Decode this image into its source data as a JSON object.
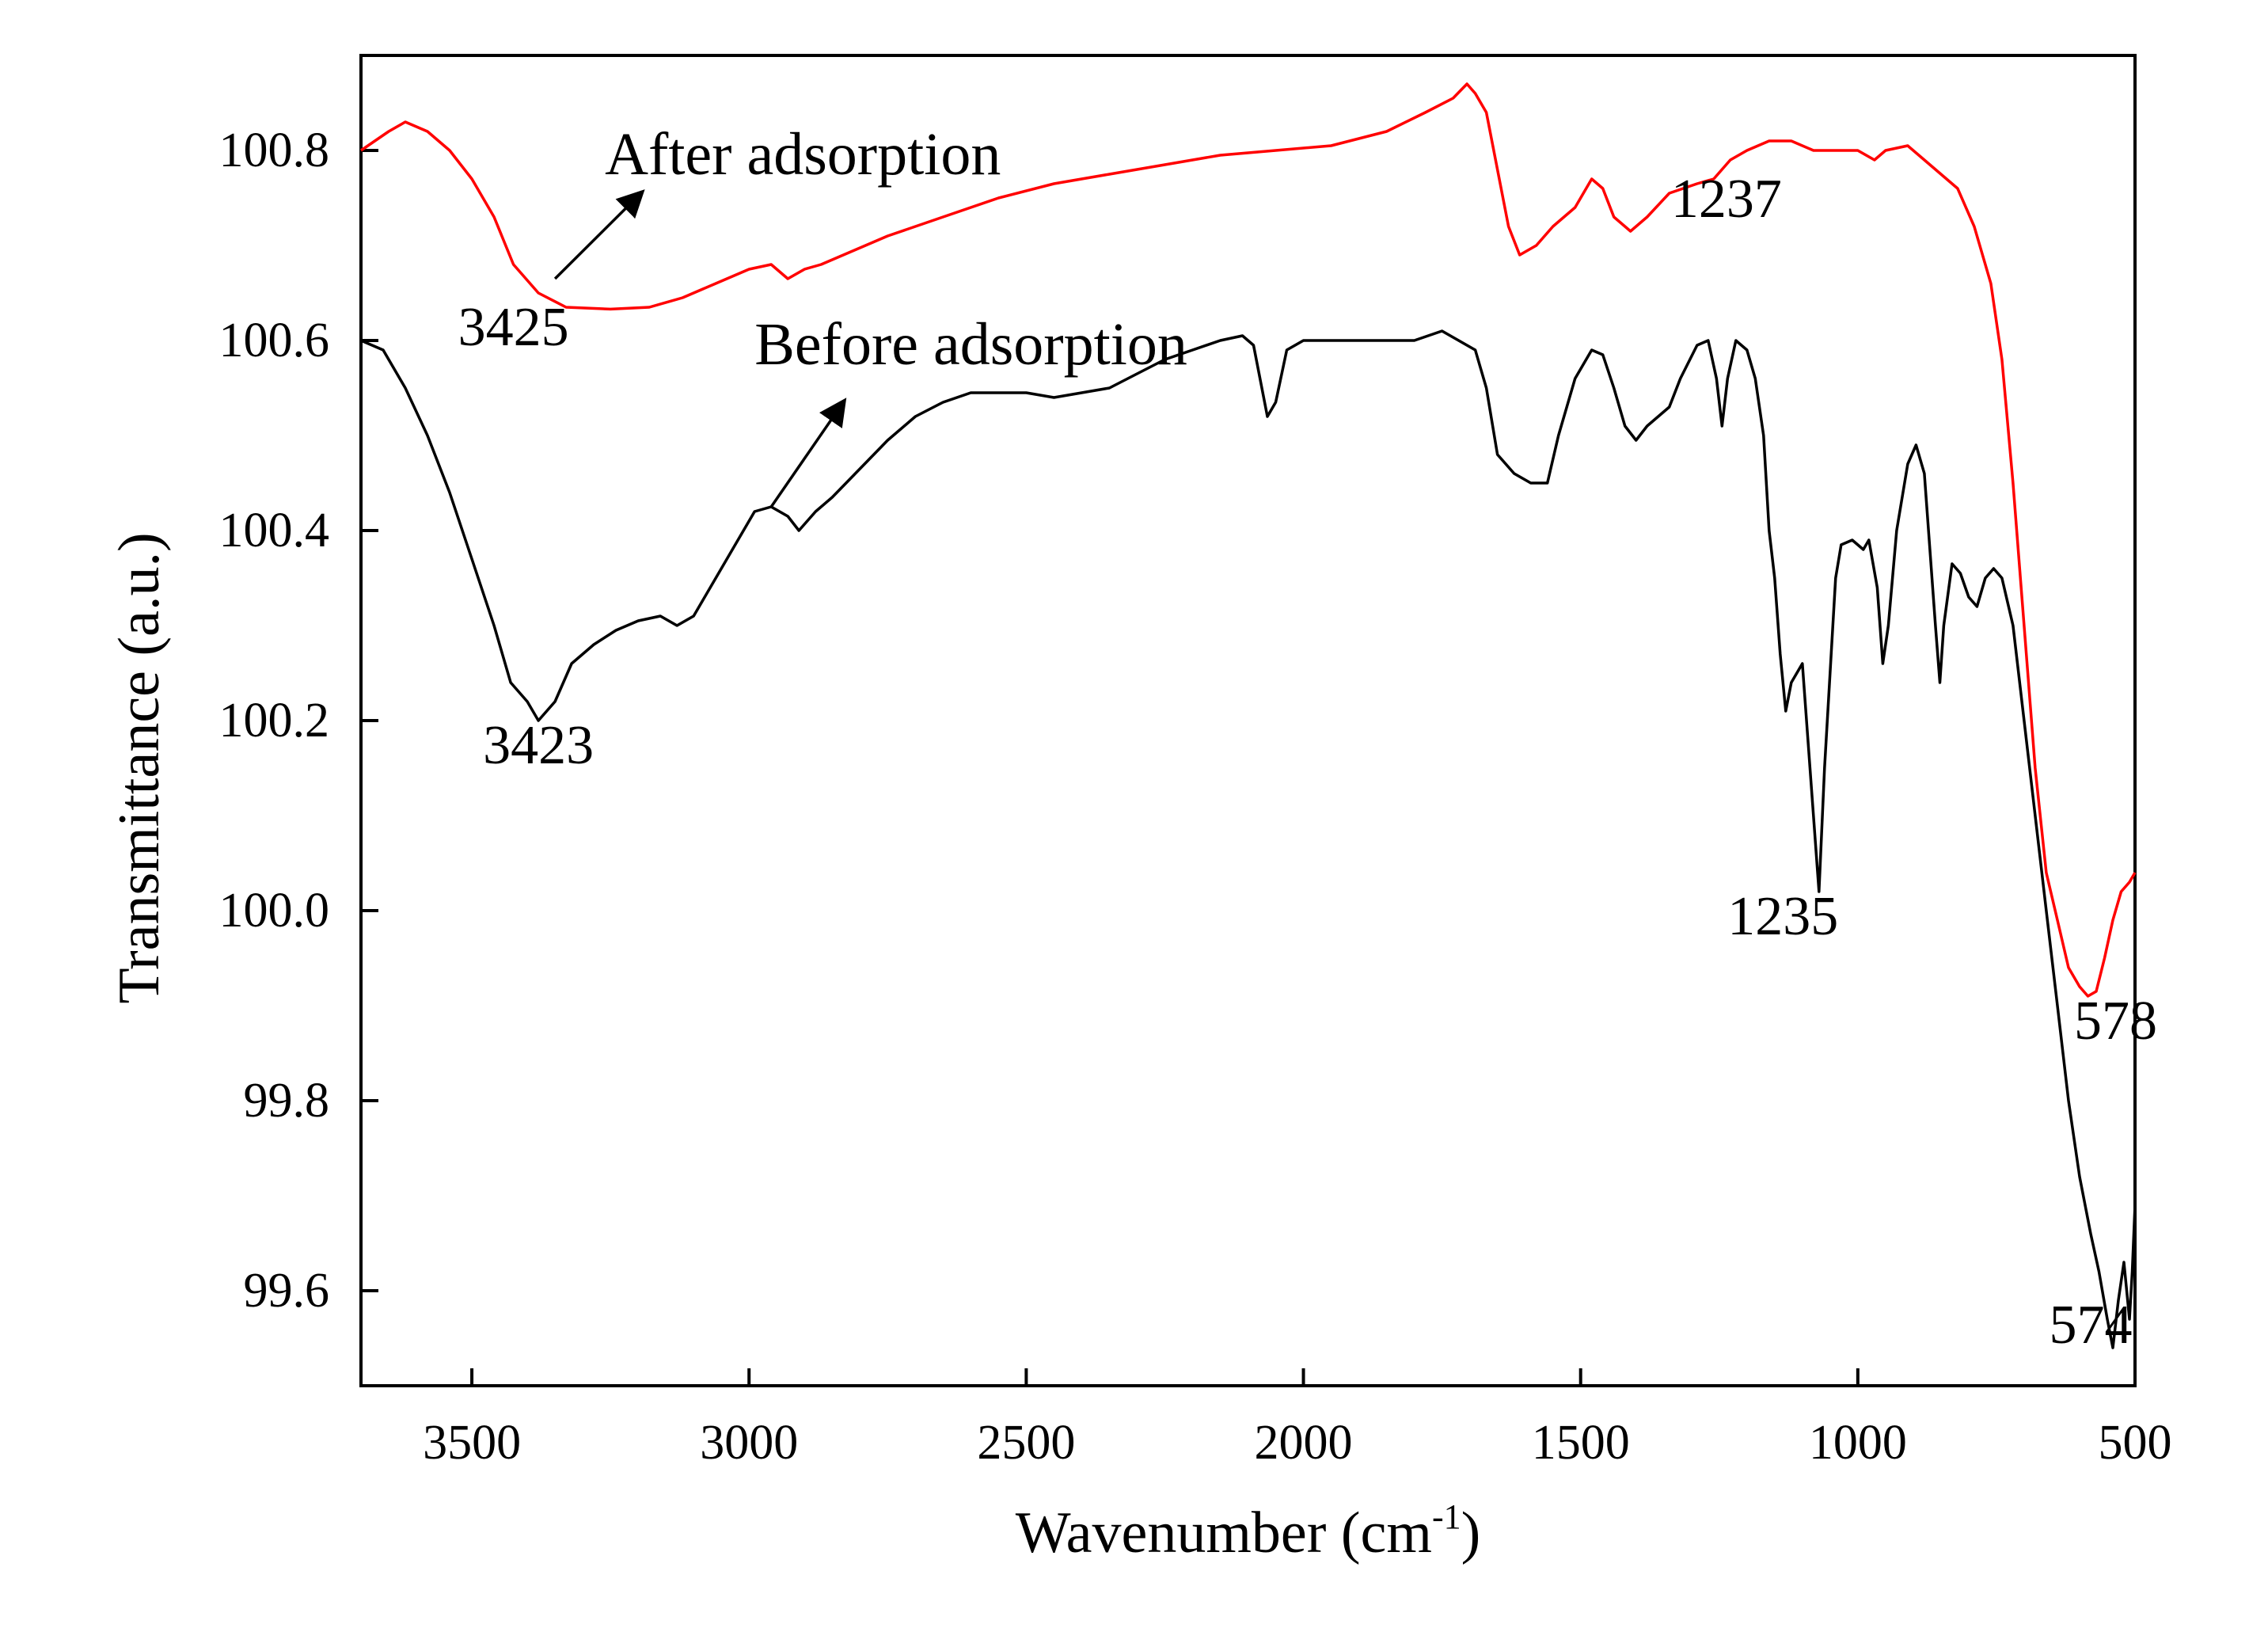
{
  "chart_data": {
    "type": "line",
    "title": "",
    "xlabel": "Wavenumber (cm",
    "xlabel_sup": "-1",
    "xlabel_close": ")",
    "ylabel": "Transmittance (a.u.)",
    "xlim": [
      3700,
      500
    ],
    "ylim": [
      99.5,
      100.9
    ],
    "x_ticks": [
      3500,
      3000,
      2500,
      2000,
      1500,
      1000,
      500
    ],
    "y_ticks": [
      99.6,
      99.8,
      100.0,
      100.2,
      100.4,
      100.6,
      100.8
    ],
    "x_tick_labels": [
      "3500",
      "3000",
      "2500",
      "2000",
      "1500",
      "1000",
      "500"
    ],
    "y_tick_labels": [
      "99.6",
      "99.8",
      "100.0",
      "100.2",
      "100.4",
      "100.6",
      "100.8"
    ],
    "series": [
      {
        "name": "After adsorption",
        "color": "#ff0000",
        "points": [
          [
            3700,
            100.8
          ],
          [
            3650,
            100.82
          ],
          [
            3620,
            100.83
          ],
          [
            3580,
            100.82
          ],
          [
            3540,
            100.8
          ],
          [
            3500,
            100.77
          ],
          [
            3460,
            100.73
          ],
          [
            3425,
            100.68
          ],
          [
            3380,
            100.65
          ],
          [
            3330,
            100.635
          ],
          [
            3250,
            100.633
          ],
          [
            3180,
            100.635
          ],
          [
            3120,
            100.645
          ],
          [
            3060,
            100.66
          ],
          [
            3000,
            100.675
          ],
          [
            2960,
            100.68
          ],
          [
            2930,
            100.665
          ],
          [
            2900,
            100.675
          ],
          [
            2870,
            100.68
          ],
          [
            2830,
            100.69
          ],
          [
            2750,
            100.71
          ],
          [
            2650,
            100.73
          ],
          [
            2550,
            100.75
          ],
          [
            2450,
            100.765
          ],
          [
            2350,
            100.775
          ],
          [
            2250,
            100.785
          ],
          [
            2150,
            100.795
          ],
          [
            2050,
            100.8
          ],
          [
            1950,
            100.805
          ],
          [
            1850,
            100.82
          ],
          [
            1780,
            100.84
          ],
          [
            1730,
            100.855
          ],
          [
            1705,
            100.87
          ],
          [
            1690,
            100.86
          ],
          [
            1670,
            100.84
          ],
          [
            1650,
            100.78
          ],
          [
            1630,
            100.72
          ],
          [
            1610,
            100.69
          ],
          [
            1580,
            100.7
          ],
          [
            1550,
            100.72
          ],
          [
            1510,
            100.74
          ],
          [
            1480,
            100.77
          ],
          [
            1460,
            100.76
          ],
          [
            1440,
            100.73
          ],
          [
            1410,
            100.715
          ],
          [
            1380,
            100.73
          ],
          [
            1340,
            100.755
          ],
          [
            1290,
            100.765
          ],
          [
            1260,
            100.77
          ],
          [
            1230,
            100.79
          ],
          [
            1200,
            100.8
          ],
          [
            1160,
            100.81
          ],
          [
            1120,
            100.81
          ],
          [
            1080,
            100.8
          ],
          [
            1040,
            100.8
          ],
          [
            1000,
            100.8
          ],
          [
            970,
            100.79
          ],
          [
            950,
            100.8
          ],
          [
            910,
            100.805
          ],
          [
            880,
            100.79
          ],
          [
            850,
            100.775
          ],
          [
            820,
            100.76
          ],
          [
            790,
            100.72
          ],
          [
            760,
            100.66
          ],
          [
            740,
            100.58
          ],
          [
            720,
            100.45
          ],
          [
            700,
            100.3
          ],
          [
            680,
            100.15
          ],
          [
            660,
            100.04
          ],
          [
            640,
            99.99
          ],
          [
            620,
            99.94
          ],
          [
            600,
            99.92
          ],
          [
            585,
            99.91
          ],
          [
            570,
            99.915
          ],
          [
            555,
            99.95
          ],
          [
            540,
            99.99
          ],
          [
            525,
            100.02
          ],
          [
            510,
            100.03
          ],
          [
            500,
            100.04
          ]
        ]
      },
      {
        "name": "Before adsorption",
        "color": "#000000",
        "points": [
          [
            3700,
            100.6
          ],
          [
            3660,
            100.59
          ],
          [
            3620,
            100.55
          ],
          [
            3580,
            100.5
          ],
          [
            3540,
            100.44
          ],
          [
            3500,
            100.37
          ],
          [
            3460,
            100.3
          ],
          [
            3430,
            100.24
          ],
          [
            3400,
            100.22
          ],
          [
            3380,
            100.2
          ],
          [
            3350,
            100.22
          ],
          [
            3320,
            100.26
          ],
          [
            3280,
            100.28
          ],
          [
            3240,
            100.295
          ],
          [
            3200,
            100.305
          ],
          [
            3160,
            100.31
          ],
          [
            3130,
            100.3
          ],
          [
            3100,
            100.31
          ],
          [
            3060,
            100.35
          ],
          [
            3020,
            100.39
          ],
          [
            2990,
            100.42
          ],
          [
            2960,
            100.425
          ],
          [
            2930,
            100.415
          ],
          [
            2910,
            100.4
          ],
          [
            2880,
            100.42
          ],
          [
            2850,
            100.435
          ],
          [
            2800,
            100.465
          ],
          [
            2750,
            100.495
          ],
          [
            2700,
            100.52
          ],
          [
            2650,
            100.535
          ],
          [
            2600,
            100.545
          ],
          [
            2550,
            100.545
          ],
          [
            2500,
            100.545
          ],
          [
            2450,
            100.54
          ],
          [
            2400,
            100.545
          ],
          [
            2350,
            100.55
          ],
          [
            2300,
            100.565
          ],
          [
            2250,
            100.58
          ],
          [
            2200,
            100.59
          ],
          [
            2150,
            100.6
          ],
          [
            2110,
            100.605
          ],
          [
            2090,
            100.595
          ],
          [
            2075,
            100.55
          ],
          [
            2065,
            100.52
          ],
          [
            2050,
            100.535
          ],
          [
            2030,
            100.59
          ],
          [
            2000,
            100.6
          ],
          [
            1950,
            100.6
          ],
          [
            1900,
            100.6
          ],
          [
            1850,
            100.6
          ],
          [
            1800,
            100.6
          ],
          [
            1750,
            100.61
          ],
          [
            1720,
            100.6
          ],
          [
            1690,
            100.59
          ],
          [
            1670,
            100.55
          ],
          [
            1650,
            100.48
          ],
          [
            1620,
            100.46
          ],
          [
            1590,
            100.45
          ],
          [
            1560,
            100.45
          ],
          [
            1540,
            100.5
          ],
          [
            1510,
            100.56
          ],
          [
            1480,
            100.59
          ],
          [
            1460,
            100.585
          ],
          [
            1440,
            100.55
          ],
          [
            1420,
            100.51
          ],
          [
            1400,
            100.495
          ],
          [
            1380,
            100.51
          ],
          [
            1360,
            100.52
          ],
          [
            1340,
            100.53
          ],
          [
            1320,
            100.56
          ],
          [
            1290,
            100.595
          ],
          [
            1270,
            100.6
          ],
          [
            1255,
            100.56
          ],
          [
            1245,
            100.51
          ],
          [
            1235,
            100.56
          ],
          [
            1220,
            100.6
          ],
          [
            1200,
            100.59
          ],
          [
            1185,
            100.56
          ],
          [
            1170,
            100.5
          ],
          [
            1160,
            100.4
          ],
          [
            1150,
            100.35
          ],
          [
            1140,
            100.27
          ],
          [
            1130,
            100.21
          ],
          [
            1120,
            100.24
          ],
          [
            1110,
            100.25
          ],
          [
            1100,
            100.26
          ],
          [
            1090,
            100.18
          ],
          [
            1080,
            100.1
          ],
          [
            1070,
            100.02
          ],
          [
            1060,
            100.15
          ],
          [
            1050,
            100.25
          ],
          [
            1040,
            100.35
          ],
          [
            1030,
            100.385
          ],
          [
            1010,
            100.39
          ],
          [
            990,
            100.38
          ],
          [
            980,
            100.39
          ],
          [
            965,
            100.34
          ],
          [
            955,
            100.26
          ],
          [
            945,
            100.3
          ],
          [
            930,
            100.4
          ],
          [
            910,
            100.47
          ],
          [
            895,
            100.49
          ],
          [
            880,
            100.46
          ],
          [
            870,
            100.38
          ],
          [
            860,
            100.3
          ],
          [
            852,
            100.24
          ],
          [
            845,
            100.3
          ],
          [
            830,
            100.365
          ],
          [
            815,
            100.355
          ],
          [
            800,
            100.33
          ],
          [
            785,
            100.32
          ],
          [
            770,
            100.35
          ],
          [
            755,
            100.36
          ],
          [
            740,
            100.35
          ],
          [
            720,
            100.3
          ],
          [
            700,
            100.2
          ],
          [
            680,
            100.1
          ],
          [
            660,
            100.0
          ],
          [
            640,
            99.9
          ],
          [
            620,
            99.8
          ],
          [
            600,
            99.72
          ],
          [
            580,
            99.66
          ],
          [
            565,
            99.62
          ],
          [
            550,
            99.57
          ],
          [
            540,
            99.54
          ],
          [
            530,
            99.59
          ],
          [
            520,
            99.63
          ],
          [
            510,
            99.57
          ],
          [
            505,
            99.62
          ],
          [
            500,
            99.69
          ]
        ]
      }
    ],
    "annotations": [
      {
        "text": "3425",
        "wn": 3425,
        "val": 100.595
      },
      {
        "text": "3423",
        "wn": 3380,
        "val": 100.155
      },
      {
        "text": "1237",
        "wn": 1237,
        "val": 100.73
      },
      {
        "text": "1235",
        "wn": 1135,
        "val": 99.975
      },
      {
        "text": "578",
        "wn": 535,
        "val": 99.865
      },
      {
        "text": "574",
        "wn": 580,
        "val": 99.545
      }
    ],
    "series_labels": [
      {
        "text": "After adsorption",
        "wn": 3260,
        "val": 100.775,
        "arrow_from": [
          3350,
          100.665
        ],
        "arrow_to": [
          3195,
          100.755
        ]
      },
      {
        "text": "Before adsorption",
        "wn": 2990,
        "val": 100.575,
        "arrow_from": [
          2960,
          100.425
        ],
        "arrow_to": [
          2830,
          100.535
        ]
      }
    ]
  }
}
